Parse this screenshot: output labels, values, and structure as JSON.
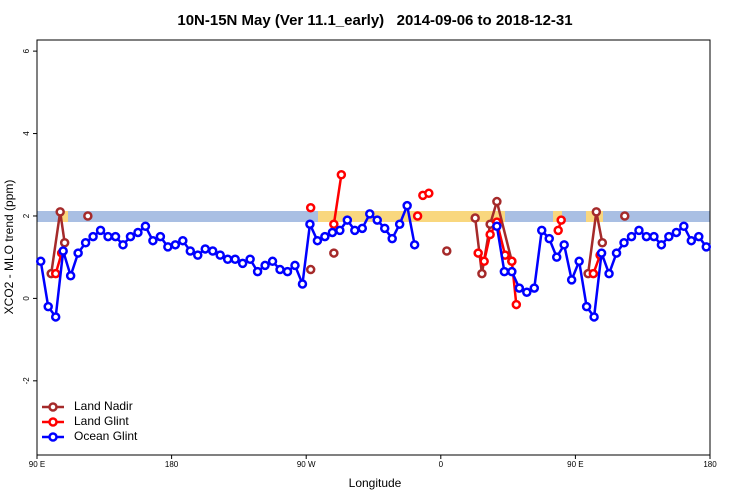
{
  "chart_data": {
    "type": "line",
    "title": "10N-15N May (Ver 11.1_early)   2014-09-06 to 2018-12-31",
    "xlabel": "Longitude",
    "ylabel": "XCO2 - MLO trend (ppm)",
    "xlim": [
      90,
      540
    ],
    "ylim": [
      -3.8,
      6.27
    ],
    "xticks": [
      {
        "value": 90,
        "label": "90 E"
      },
      180,
      {
        "value": 270,
        "label": "90 W"
      },
      {
        "value": 360,
        "label": "0"
      },
      {
        "value": 450,
        "label": "90 E"
      },
      {
        "value": 540,
        "label": "180"
      }
    ],
    "yticks": [
      -2,
      0,
      2,
      4,
      6
    ],
    "legend": "bottom-left",
    "series": [
      {
        "name": "Land Nadir",
        "color": "#a52a2a",
        "x": [
          99.5,
          105.5,
          108.5,
          null,
          124,
          null,
          273,
          null,
          288.5,
          null,
          364,
          null,
          383,
          387.5,
          393,
          397.5,
          407.5,
          null,
          458.5,
          464,
          468,
          null,
          483
        ],
        "values": [
          0.6,
          2.1,
          1.35,
          null,
          2.0,
          null,
          0.7,
          null,
          1.1,
          null,
          1.15,
          null,
          1.95,
          0.6,
          1.8,
          2.35,
          0.9,
          null,
          0.6,
          2.1,
          1.35,
          null,
          2.0
        ]
      },
      {
        "name": "Land Glint",
        "color": "#ff0000",
        "x": [
          102.5,
          106.5,
          null,
          273,
          null,
          288.5,
          293.5,
          null,
          344.5,
          null,
          348,
          352,
          null,
          385,
          389,
          393,
          397.5,
          403,
          407.5,
          410.5,
          null,
          438.5,
          440.5,
          null,
          462,
          466.5
        ],
        "values": [
          0.6,
          1.1,
          null,
          2.2,
          null,
          1.8,
          3.0,
          null,
          2.0,
          null,
          2.5,
          2.55,
          null,
          1.1,
          0.9,
          1.55,
          1.85,
          1.05,
          0.9,
          -0.15,
          null,
          1.65,
          1.9,
          null,
          0.6,
          1.05
        ]
      },
      {
        "name": "Ocean Glint",
        "color": "#0000ff",
        "x": [
          92.5,
          97.5,
          102.5,
          107.5,
          112.5,
          117.5,
          122.5,
          127.5,
          132.5,
          137.5,
          142.5,
          147.5,
          152.5,
          157.5,
          162.5,
          167.5,
          172.5,
          177.5,
          182.5,
          187.5,
          192.5,
          197.5,
          202.5,
          207.5,
          212.5,
          217.5,
          222.5,
          227.5,
          232.5,
          237.5,
          242.5,
          247.5,
          252.5,
          257.5,
          262.5,
          267.5,
          272.5,
          277.5,
          282.5,
          287.5,
          292.5,
          297.5,
          302.5,
          307.5,
          312.5,
          317.5,
          322.5,
          327.5,
          332.5,
          337.5,
          342.5,
          null,
          397.5,
          402.5,
          407.5,
          412.5,
          417.5,
          422.5,
          427.5,
          432.5,
          437.5,
          442.5,
          447.5,
          452.5,
          457.5,
          462.5,
          467.5,
          472.5,
          477.5,
          482.5,
          487.5,
          492.5,
          497.5,
          502.5,
          507.5,
          512.5,
          517.5,
          522.5,
          527.5,
          532.5,
          537.5
        ],
        "values": [
          0.9,
          -0.2,
          -0.45,
          1.15,
          0.55,
          1.1,
          1.35,
          1.5,
          1.65,
          1.5,
          1.5,
          1.3,
          1.5,
          1.6,
          1.75,
          1.4,
          1.5,
          1.25,
          1.3,
          1.4,
          1.15,
          1.05,
          1.2,
          1.15,
          1.05,
          0.95,
          0.95,
          0.85,
          0.95,
          0.65,
          0.8,
          0.9,
          0.7,
          0.65,
          0.8,
          0.35,
          1.8,
          1.4,
          1.5,
          1.6,
          1.65,
          1.9,
          1.65,
          1.7,
          2.05,
          1.9,
          1.7,
          1.45,
          1.8,
          2.25,
          1.3,
          null,
          1.75,
          0.65,
          0.65,
          0.25,
          0.15,
          0.25,
          1.65,
          1.45,
          1.0,
          1.3,
          0.45,
          0.9,
          -0.2,
          -0.45,
          1.1,
          0.6,
          1.1,
          1.35,
          1.5,
          1.65,
          1.5,
          1.5,
          1.3,
          1.5,
          1.6,
          1.75,
          1.4,
          1.5,
          1.25
        ]
      }
    ]
  }
}
